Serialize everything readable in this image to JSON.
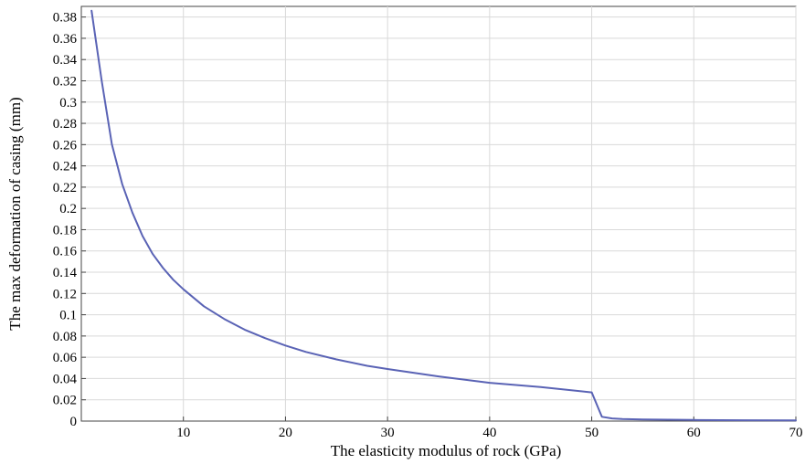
{
  "chart_data": {
    "type": "line",
    "title": "",
    "xlabel": "The elasticity modulus of rock (GPa)",
    "ylabel": "The max deformation of casing (mm)",
    "xlim": [
      0,
      70
    ],
    "ylim": [
      0,
      0.39
    ],
    "x_ticks": [
      10,
      20,
      30,
      40,
      50,
      60,
      70
    ],
    "y_ticks": [
      0,
      0.02,
      0.04,
      0.06,
      0.08,
      0.1,
      0.12,
      0.14,
      0.16,
      0.18,
      0.2,
      0.22,
      0.24,
      0.26,
      0.28,
      0.3,
      0.32,
      0.34,
      0.36,
      0.38
    ],
    "grid": true,
    "line_color": "#5a63b5",
    "series": [
      {
        "x": [
          1,
          2,
          3,
          4,
          5,
          6,
          7,
          8,
          9,
          10,
          12,
          14,
          16,
          18,
          20,
          22,
          25,
          28,
          30,
          35,
          40,
          45,
          50,
          51,
          52,
          53,
          55,
          60,
          65,
          70
        ],
        "values": [
          0.386,
          0.32,
          0.26,
          0.223,
          0.196,
          0.174,
          0.157,
          0.144,
          0.133,
          0.124,
          0.108,
          0.096,
          0.086,
          0.078,
          0.071,
          0.065,
          0.058,
          0.052,
          0.049,
          0.042,
          0.036,
          0.032,
          0.027,
          0.004,
          0.0025,
          0.002,
          0.0015,
          0.001,
          0.0008,
          0.0006
        ]
      }
    ]
  }
}
